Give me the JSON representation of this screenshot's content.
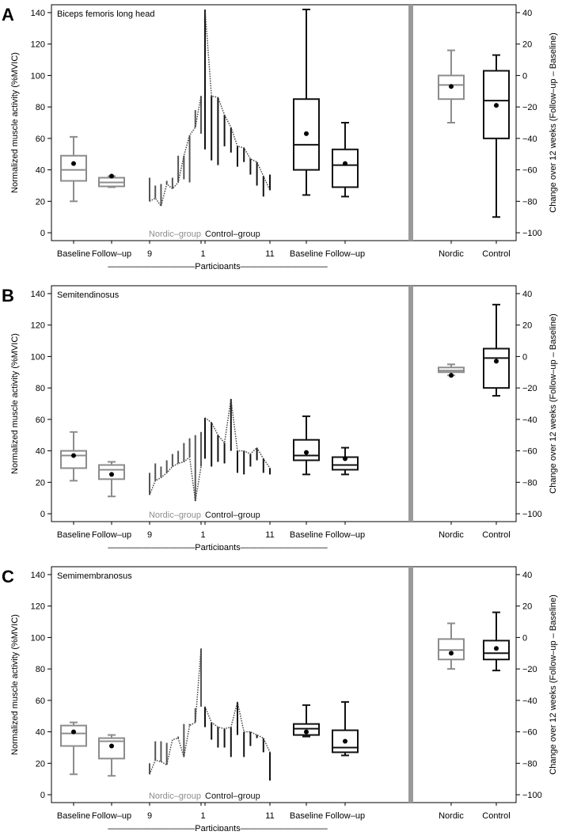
{
  "figure": {
    "left_axis_label": "Normalized muscle activity (%MVIC)",
    "right_axis_label": "Change over 12 weeks (Follow–up – Baseline)",
    "left_ticks": [
      0,
      20,
      40,
      60,
      80,
      100,
      120,
      140
    ],
    "right_ticks": [
      -100,
      -80,
      -60,
      -40,
      -20,
      0,
      20,
      40
    ],
    "nordic_group_label": "Nordic–group",
    "control_group_label": "Control–group",
    "participants_label": "——————————Participants——————————",
    "x_labels": {
      "baseline": "Baseline",
      "followup": "Follow–up",
      "p9": "9",
      "p1": "1",
      "p11": "11",
      "nordic": "Nordic",
      "control": "Control"
    },
    "colors": {
      "nordic": "#8c8c8c",
      "control": "#111111",
      "divider": "#9a9a9a"
    }
  },
  "chart_data": [
    {
      "panel_letter": "A",
      "type": "box",
      "title": "Biceps femoris long head",
      "ylim_left": [
        -5,
        145
      ],
      "ylim_right": [
        -105,
        45
      ],
      "nordic_boxes": [
        {
          "label": "Baseline",
          "min": 20,
          "q1": 33,
          "median": 40,
          "q3": 49,
          "max": 61,
          "mean": 44
        },
        {
          "label": "Follow–up",
          "min": 29,
          "q1": 29.5,
          "median": 32,
          "q3": 35,
          "max": 36,
          "mean": 36
        }
      ],
      "control_boxes": [
        {
          "label": "Baseline",
          "min": 24,
          "q1": 40,
          "median": 56,
          "q3": 85,
          "max": 142,
          "mean": 63
        },
        {
          "label": "Follow–up",
          "min": 23,
          "q1": 29,
          "median": 43,
          "q3": 53,
          "max": 70,
          "mean": 44
        }
      ],
      "nordic_participants": [
        {
          "id": 9,
          "baseline": 20,
          "followup": 35
        },
        {
          "baseline": 22,
          "followup": 30
        },
        {
          "baseline": 17,
          "followup": 31
        },
        {
          "baseline": 31,
          "followup": 33
        },
        {
          "baseline": 28,
          "followup": 35
        },
        {
          "baseline": 32,
          "followup": 49
        },
        {
          "baseline": 49,
          "followup": 34
        },
        {
          "baseline": 62,
          "followup": 32
        },
        {
          "baseline": 67,
          "followup": 78
        },
        {
          "id": 1,
          "baseline": 87,
          "followup": 63
        }
      ],
      "control_participants": [
        {
          "id": 1,
          "baseline": 142,
          "followup": 53
        },
        {
          "baseline": 87,
          "followup": 46
        },
        {
          "baseline": 86,
          "followup": 43
        },
        {
          "baseline": 75,
          "followup": 55
        },
        {
          "baseline": 67,
          "followup": 51
        },
        {
          "baseline": 55,
          "followup": 42
        },
        {
          "baseline": 54,
          "followup": 45
        },
        {
          "baseline": 47,
          "followup": 37
        },
        {
          "baseline": 45,
          "followup": 30
        },
        {
          "baseline": 36,
          "followup": 23
        },
        {
          "id": 11,
          "baseline": 27,
          "followup": 37
        }
      ],
      "change_boxes": [
        {
          "label": "Nordic",
          "min": -30,
          "q1": -15,
          "median": -6,
          "q3": 0,
          "max": 16,
          "mean": -7
        },
        {
          "label": "Control",
          "min": -90,
          "q1": -40,
          "median": -16,
          "q3": 3,
          "max": 13,
          "mean": -19
        }
      ]
    },
    {
      "panel_letter": "B",
      "type": "box",
      "title": "Semitendinosus",
      "ylim_left": [
        -5,
        145
      ],
      "ylim_right": [
        -105,
        45
      ],
      "nordic_boxes": [
        {
          "label": "Baseline",
          "min": 21,
          "q1": 29,
          "median": 37,
          "q3": 40,
          "max": 52,
          "mean": 37
        },
        {
          "label": "Follow–up",
          "min": 11,
          "q1": 22,
          "median": 28,
          "q3": 31,
          "max": 33,
          "mean": 25
        }
      ],
      "control_boxes": [
        {
          "label": "Baseline",
          "min": 25,
          "q1": 34,
          "median": 37,
          "q3": 47,
          "max": 62,
          "mean": 39
        },
        {
          "label": "Follow–up",
          "min": 25,
          "q1": 28,
          "median": 31,
          "q3": 36,
          "max": 42,
          "mean": 35
        }
      ],
      "nordic_participants": [
        {
          "id": 9,
          "baseline": 12,
          "followup": 26
        },
        {
          "baseline": 21,
          "followup": 32
        },
        {
          "baseline": 23,
          "followup": 30
        },
        {
          "baseline": 26,
          "followup": 34
        },
        {
          "baseline": 30,
          "followup": 38
        },
        {
          "baseline": 32,
          "followup": 40
        },
        {
          "baseline": 33,
          "followup": 45
        },
        {
          "baseline": 36,
          "followup": 48
        },
        {
          "baseline": 8,
          "followup": 50
        },
        {
          "id": 1,
          "baseline": 30,
          "followup": 52
        }
      ],
      "control_participants": [
        {
          "id": 1,
          "baseline": 61,
          "followup": 35
        },
        {
          "baseline": 58,
          "followup": 30
        },
        {
          "baseline": 50,
          "followup": 33
        },
        {
          "baseline": 45,
          "followup": 32
        },
        {
          "baseline": 73,
          "followup": 40
        },
        {
          "baseline": 40,
          "followup": 26
        },
        {
          "baseline": 40,
          "followup": 25
        },
        {
          "baseline": 38,
          "followup": 30
        },
        {
          "baseline": 42,
          "followup": 34
        },
        {
          "baseline": 35,
          "followup": 26
        },
        {
          "id": 11,
          "baseline": 29,
          "followup": 25
        }
      ],
      "change_boxes": [
        {
          "label": "Nordic",
          "min": -12,
          "q1": -10,
          "median": -9,
          "q3": -7,
          "max": -5,
          "mean": -12
        },
        {
          "label": "Control",
          "min": -25,
          "q1": -20,
          "median": -1,
          "q3": 5,
          "max": 33,
          "mean": -3
        }
      ]
    },
    {
      "panel_letter": "C",
      "type": "box",
      "title": "Semimembranosus",
      "ylim_left": [
        -5,
        145
      ],
      "ylim_right": [
        -105,
        45
      ],
      "nordic_boxes": [
        {
          "label": "Baseline",
          "min": 13,
          "q1": 31,
          "median": 39,
          "q3": 44,
          "max": 46,
          "mean": 40
        },
        {
          "label": "Follow–up",
          "min": 12,
          "q1": 23,
          "median": 34,
          "q3": 36,
          "max": 38,
          "mean": 31
        }
      ],
      "control_boxes": [
        {
          "label": "Baseline",
          "min": 37,
          "q1": 38,
          "median": 42,
          "q3": 45,
          "max": 57,
          "mean": 40
        },
        {
          "label": "Follow–up",
          "min": 25,
          "q1": 27,
          "median": 30,
          "q3": 41,
          "max": 59,
          "mean": 34
        }
      ],
      "nordic_participants": [
        {
          "id": 9,
          "baseline": 13,
          "followup": 20
        },
        {
          "baseline": 22,
          "followup": 34
        },
        {
          "baseline": 21,
          "followup": 34
        },
        {
          "baseline": 19,
          "followup": 33
        },
        {
          "baseline": 35,
          "followup": 35
        },
        {
          "baseline": 36,
          "followup": 37
        },
        {
          "baseline": 24,
          "followup": 45
        },
        {
          "baseline": 44,
          "followup": 45
        },
        {
          "baseline": 46,
          "followup": 55
        },
        {
          "id": 1,
          "baseline": 93,
          "followup": 56
        }
      ],
      "control_participants": [
        {
          "id": 1,
          "baseline": 56,
          "followup": 43
        },
        {
          "baseline": 46,
          "followup": 35
        },
        {
          "baseline": 43,
          "followup": 30
        },
        {
          "baseline": 42,
          "followup": 30
        },
        {
          "baseline": 43,
          "followup": 24
        },
        {
          "baseline": 59,
          "followup": 38
        },
        {
          "baseline": 40,
          "followup": 24
        },
        {
          "baseline": 40,
          "followup": 31
        },
        {
          "baseline": 38,
          "followup": 36
        },
        {
          "baseline": 36,
          "followup": 27
        },
        {
          "id": 11,
          "baseline": 27,
          "followup": 9
        }
      ],
      "change_boxes": [
        {
          "label": "Nordic",
          "min": -20,
          "q1": -14,
          "median": -8,
          "q3": -1,
          "max": 9,
          "mean": -10
        },
        {
          "label": "Control",
          "min": -21,
          "q1": -14,
          "median": -10,
          "q3": -2,
          "max": 16,
          "mean": -7
        }
      ]
    }
  ]
}
